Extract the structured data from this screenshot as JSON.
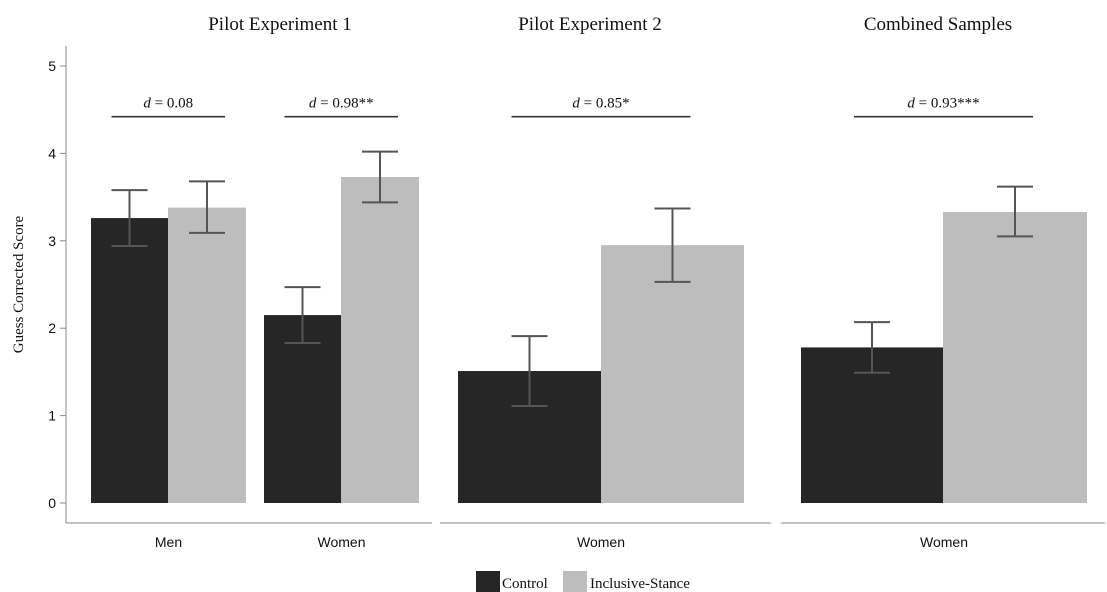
{
  "chart_data": {
    "type": "bar",
    "ylabel": "Guess Corrected Score",
    "ylim": [
      0,
      5
    ],
    "yticks": [
      "0",
      "1",
      "2",
      "3",
      "4",
      "5"
    ],
    "grid": false,
    "legend_position": "bottom-center",
    "colors": {
      "Control": "#262626",
      "Inclusive-Stance": "#bdbdbd",
      "errorbar": "#555555"
    },
    "legend": [
      "Control",
      "Inclusive-Stance"
    ],
    "panels": [
      {
        "title": "Pilot Experiment 1",
        "categories": [
          "Men",
          "Women"
        ],
        "series": [
          {
            "name": "Control",
            "values": [
              3.26,
              2.15
            ],
            "err_low": [
              2.94,
              1.83
            ],
            "err_high": [
              3.58,
              2.47
            ]
          },
          {
            "name": "Inclusive-Stance",
            "values": [
              3.38,
              3.73
            ],
            "err_low": [
              3.09,
              3.44
            ],
            "err_high": [
              3.68,
              4.02
            ]
          }
        ],
        "effect_sizes": [
          {
            "category": "Men",
            "symbol": "d",
            "text": " = 0.08",
            "y": 4.42
          },
          {
            "category": "Women",
            "symbol": "d",
            "text": " = 0.98**",
            "y": 4.42
          }
        ]
      },
      {
        "title": "Pilot Experiment 2",
        "categories": [
          "Women"
        ],
        "series": [
          {
            "name": "Control",
            "values": [
              1.51
            ],
            "err_low": [
              1.11
            ],
            "err_high": [
              1.91
            ]
          },
          {
            "name": "Inclusive-Stance",
            "values": [
              2.95
            ],
            "err_low": [
              2.53
            ],
            "err_high": [
              3.37
            ]
          }
        ],
        "effect_sizes": [
          {
            "category": "Women",
            "symbol": "d",
            "text": " = 0.85*",
            "y": 4.42
          }
        ]
      },
      {
        "title": "Combined Samples",
        "categories": [
          "Women"
        ],
        "series": [
          {
            "name": "Control",
            "values": [
              1.78
            ],
            "err_low": [
              1.49
            ],
            "err_high": [
              2.07
            ]
          },
          {
            "name": "Inclusive-Stance",
            "values": [
              3.33
            ],
            "err_low": [
              3.05
            ],
            "err_high": [
              3.62
            ]
          }
        ],
        "effect_sizes": [
          {
            "category": "Women",
            "symbol": "d",
            "text": " = 0.93***",
            "y": 4.42
          }
        ]
      }
    ]
  }
}
